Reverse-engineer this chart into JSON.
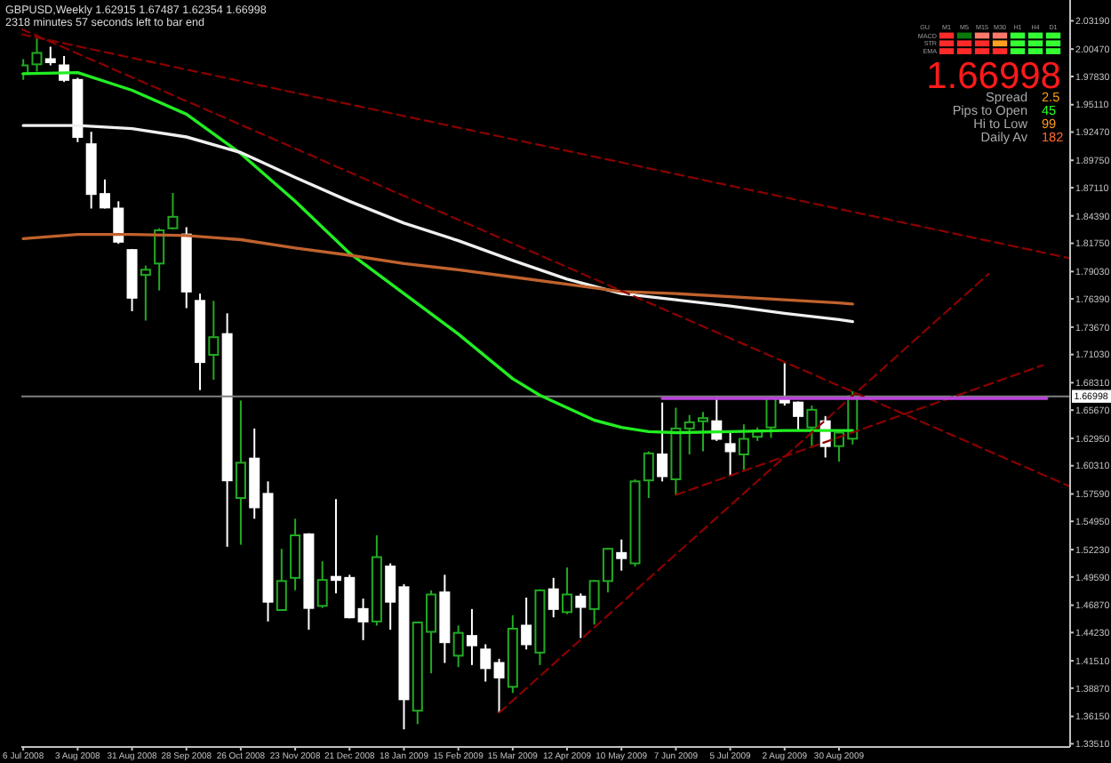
{
  "chart_data": {
    "type": "candlestick",
    "title": "GBPUSD,Weekly 1.62915 1.67487 1.62354 1.66998",
    "subtitle": "2318 minutes 57 seconds left to bar end",
    "x": [
      "2008-07-06",
      "2008-07-13",
      "2008-07-20",
      "2008-07-27",
      "2008-08-03",
      "2008-08-10",
      "2008-08-17",
      "2008-08-24",
      "2008-08-31",
      "2008-09-07",
      "2008-09-14",
      "2008-09-21",
      "2008-09-28",
      "2008-10-05",
      "2008-10-12",
      "2008-10-19",
      "2008-10-26",
      "2008-11-02",
      "2008-11-09",
      "2008-11-16",
      "2008-11-23",
      "2008-11-30",
      "2008-12-07",
      "2008-12-14",
      "2008-12-21",
      "2008-12-28",
      "2009-01-04",
      "2009-01-11",
      "2009-01-18",
      "2009-01-25",
      "2009-02-01",
      "2009-02-08",
      "2009-02-15",
      "2009-02-22",
      "2009-03-01",
      "2009-03-08",
      "2009-03-15",
      "2009-03-22",
      "2009-03-29",
      "2009-04-05",
      "2009-04-12",
      "2009-04-19",
      "2009-04-26",
      "2009-05-03",
      "2009-05-10",
      "2009-05-17",
      "2009-05-24",
      "2009-05-31",
      "2009-06-07",
      "2009-06-14",
      "2009-06-21",
      "2009-06-28",
      "2009-07-05",
      "2009-07-12",
      "2009-07-19",
      "2009-07-26",
      "2009-08-02",
      "2009-08-09",
      "2009-08-16",
      "2009-08-23",
      "2009-08-30",
      "2009-09-06"
    ],
    "ohlc": [
      [
        1.981,
        1.995,
        1.975,
        1.989
      ],
      [
        1.99,
        2.015,
        1.983,
        2.001
      ],
      [
        1.995,
        2.007,
        1.989,
        1.992
      ],
      [
        1.989,
        1.998,
        1.973,
        1.975
      ],
      [
        1.975,
        1.977,
        1.915,
        1.92
      ],
      [
        1.913,
        1.925,
        1.851,
        1.865
      ],
      [
        1.865,
        1.879,
        1.851,
        1.852
      ],
      [
        1.851,
        1.858,
        1.817,
        1.819
      ],
      [
        1.811,
        1.812,
        1.752,
        1.765
      ],
      [
        1.787,
        1.796,
        1.743,
        1.792
      ],
      [
        1.798,
        1.832,
        1.772,
        1.83
      ],
      [
        1.832,
        1.866,
        1.831,
        1.843
      ],
      [
        1.826,
        1.833,
        1.755,
        1.771
      ],
      [
        1.762,
        1.769,
        1.676,
        1.703
      ],
      [
        1.71,
        1.762,
        1.686,
        1.727
      ],
      [
        1.73,
        1.75,
        1.525,
        1.589
      ],
      [
        1.572,
        1.666,
        1.527,
        1.606
      ],
      [
        1.61,
        1.639,
        1.552,
        1.563
      ],
      [
        1.576,
        1.588,
        1.453,
        1.472
      ],
      [
        1.464,
        1.523,
        1.464,
        1.492
      ],
      [
        1.495,
        1.552,
        1.483,
        1.536
      ],
      [
        1.537,
        1.538,
        1.445,
        1.466
      ],
      [
        1.468,
        1.511,
        1.466,
        1.493
      ],
      [
        1.496,
        1.571,
        1.48,
        1.493
      ],
      [
        1.495,
        1.498,
        1.456,
        1.457
      ],
      [
        1.465,
        1.475,
        1.435,
        1.453
      ],
      [
        1.453,
        1.536,
        1.449,
        1.515
      ],
      [
        1.506,
        1.509,
        1.445,
        1.472
      ],
      [
        1.486,
        1.489,
        1.349,
        1.378
      ],
      [
        1.367,
        1.453,
        1.354,
        1.452
      ],
      [
        1.443,
        1.483,
        1.403,
        1.479
      ],
      [
        1.481,
        1.498,
        1.413,
        1.433
      ],
      [
        1.42,
        1.449,
        1.409,
        1.442
      ],
      [
        1.439,
        1.465,
        1.411,
        1.43
      ],
      [
        1.426,
        1.431,
        1.395,
        1.408
      ],
      [
        1.413,
        1.417,
        1.365,
        1.399
      ],
      [
        1.39,
        1.459,
        1.384,
        1.446
      ],
      [
        1.449,
        1.476,
        1.426,
        1.431
      ],
      [
        1.423,
        1.484,
        1.411,
        1.483
      ],
      [
        1.484,
        1.495,
        1.457,
        1.465
      ],
      [
        1.462,
        1.505,
        1.46,
        1.479
      ],
      [
        1.477,
        1.48,
        1.437,
        1.467
      ],
      [
        1.465,
        1.493,
        1.45,
        1.492
      ],
      [
        1.492,
        1.524,
        1.481,
        1.523
      ],
      [
        1.519,
        1.532,
        1.502,
        1.514
      ],
      [
        1.509,
        1.59,
        1.506,
        1.588
      ],
      [
        1.589,
        1.617,
        1.572,
        1.615
      ],
      [
        1.614,
        1.664,
        1.588,
        1.593
      ],
      [
        1.59,
        1.659,
        1.575,
        1.639
      ],
      [
        1.639,
        1.652,
        1.614,
        1.645
      ],
      [
        1.646,
        1.655,
        1.617,
        1.649
      ],
      [
        1.646,
        1.67,
        1.627,
        1.629
      ],
      [
        1.624,
        1.635,
        1.593,
        1.617
      ],
      [
        1.614,
        1.643,
        1.599,
        1.629
      ],
      [
        1.631,
        1.64,
        1.627,
        1.637
      ],
      [
        1.64,
        1.67,
        1.63,
        1.668
      ],
      [
        1.668,
        1.702,
        1.661,
        1.664
      ],
      [
        1.664,
        1.665,
        1.637,
        1.651
      ],
      [
        1.64,
        1.661,
        1.622,
        1.657
      ],
      [
        1.646,
        1.651,
        1.611,
        1.622
      ],
      [
        1.622,
        1.637,
        1.607,
        1.635
      ],
      [
        1.62915,
        1.67487,
        1.62354,
        1.66998
      ]
    ],
    "colors": [
      "#22aa22",
      "#22aa22",
      "#ffffff",
      "#ffffff",
      "#ffffff",
      "#ffffff",
      "#ffffff",
      "#ffffff",
      "#ffffff",
      "#22aa22",
      "#22aa22",
      "#22aa22",
      "#ffffff",
      "#ffffff",
      "#22aa22",
      "#ffffff",
      "#22aa22",
      "#ffffff",
      "#ffffff",
      "#22aa22",
      "#22aa22",
      "#ffffff",
      "#22aa22",
      "#ffffff",
      "#ffffff",
      "#ffffff",
      "#22aa22",
      "#ffffff",
      "#ffffff",
      "#22aa22",
      "#22aa22",
      "#ffffff",
      "#22aa22",
      "#ffffff",
      "#ffffff",
      "#ffffff",
      "#22aa22",
      "#ffffff",
      "#22aa22",
      "#ffffff",
      "#22aa22",
      "#ffffff",
      "#22aa22",
      "#22aa22",
      "#ffffff",
      "#22aa22",
      "#22aa22",
      "#ffffff",
      "#22aa22",
      "#22aa22",
      "#22aa22",
      "#ffffff",
      "#ffffff",
      "#22aa22",
      "#22aa22",
      "#22aa22",
      "#ffffff",
      "#ffffff",
      "#22aa22",
      "#ffffff",
      "#22aa22",
      "#22aa22"
    ],
    "series": [
      {
        "type": "line",
        "color": "#22ee22",
        "x": [
          "2008-07-06",
          "2008-08-03",
          "2008-08-31",
          "2008-09-28",
          "2008-10-26",
          "2008-11-23",
          "2008-12-21",
          "2009-01-18",
          "2009-02-15",
          "2009-03-15",
          "2009-03-29",
          "2009-04-12",
          "2009-04-26",
          "2009-05-10",
          "2009-05-24",
          "2009-06-07",
          "2009-07-05",
          "2009-08-02",
          "2009-08-30",
          "2009-09-06"
        ],
        "values": [
          1.981,
          1.982,
          1.965,
          1.942,
          1.904,
          1.858,
          1.808,
          1.769,
          1.73,
          1.687,
          1.671,
          1.659,
          1.647,
          1.64,
          1.636,
          1.635,
          1.636,
          1.637,
          1.637,
          1.637
        ]
      },
      {
        "type": "line",
        "color": "#f0f0f0",
        "x": [
          "2008-07-06",
          "2008-08-03",
          "2008-08-31",
          "2008-09-28",
          "2008-10-26",
          "2008-11-23",
          "2008-12-21",
          "2009-01-18",
          "2009-02-15",
          "2009-03-15",
          "2009-04-12",
          "2009-05-10",
          "2009-06-07",
          "2009-07-05",
          "2009-08-02",
          "2009-08-30",
          "2009-09-06"
        ],
        "values": [
          1.931,
          1.931,
          1.928,
          1.92,
          1.905,
          1.881,
          1.858,
          1.837,
          1.82,
          1.801,
          1.783,
          1.769,
          1.763,
          1.757,
          1.75,
          1.744,
          1.742
        ]
      },
      {
        "type": "line",
        "color": "#c0622d",
        "x": [
          "2008-07-06",
          "2008-08-03",
          "2008-08-31",
          "2008-09-28",
          "2008-10-26",
          "2008-11-23",
          "2008-12-21",
          "2009-01-18",
          "2009-02-15",
          "2009-03-15",
          "2009-04-12",
          "2009-05-10",
          "2009-06-07",
          "2009-07-05",
          "2009-08-02",
          "2009-08-30",
          "2009-09-06"
        ],
        "values": [
          1.822,
          1.826,
          1.826,
          1.825,
          1.821,
          1.813,
          1.806,
          1.798,
          1.792,
          1.785,
          1.778,
          1.771,
          1.769,
          1.766,
          1.763,
          1.76,
          1.759
        ]
      },
      {
        "type": "line",
        "color": "#8b0000",
        "line_style": "dashed",
        "x": [
          "2008-07-05",
          "2009-12-27"
        ],
        "values": [
          2.019,
          1.803
        ]
      },
      {
        "type": "line",
        "color": "#8b0000",
        "line_style": "dashed",
        "x": [
          "2008-07-05",
          "2009-12-27"
        ],
        "values": [
          2.024,
          1.583
        ]
      },
      {
        "type": "line",
        "color": "#8b0000",
        "line_style": "dashed",
        "x": [
          "2009-03-08",
          "2009-11-15"
        ],
        "values": [
          1.365,
          1.788
        ]
      },
      {
        "type": "line",
        "color": "#8b0000",
        "line_style": "dashed",
        "x": [
          "2009-06-07",
          "2009-12-13"
        ],
        "values": [
          1.575,
          1.7
        ]
      },
      {
        "type": "line",
        "color": "#bb44dd",
        "x": [
          "2009-05-31",
          "2009-12-15"
        ],
        "values": [
          1.668,
          1.668
        ]
      }
    ],
    "xlim": [
      "2008-07-05",
      "2009-12-27"
    ],
    "xticks": [
      {
        "value": "2008-07-06",
        "label": "6 Jul 2008"
      },
      {
        "value": "2008-08-03",
        "label": "3 Aug 2008"
      },
      {
        "value": "2008-08-31",
        "label": "31 Aug 2008"
      },
      {
        "value": "2008-09-28",
        "label": "28 Sep 2008"
      },
      {
        "value": "2008-10-26",
        "label": "26 Oct 2008"
      },
      {
        "value": "2008-11-23",
        "label": "23 Nov 2008"
      },
      {
        "value": "2008-12-21",
        "label": "21 Dec 2008"
      },
      {
        "value": "2009-01-18",
        "label": "18 Jan 2009"
      },
      {
        "value": "2009-02-15",
        "label": "15 Feb 2009"
      },
      {
        "value": "2009-03-15",
        "label": "15 Mar 2009"
      },
      {
        "value": "2009-04-12",
        "label": "12 Apr 2009"
      },
      {
        "value": "2009-05-10",
        "label": "10 May 2009"
      },
      {
        "value": "2009-06-07",
        "label": "7 Jun 2009"
      },
      {
        "value": "2009-07-05",
        "label": "5 Jul 2009"
      },
      {
        "value": "2009-08-02",
        "label": "2 Aug 2009"
      },
      {
        "value": "2009-08-30",
        "label": "30 Aug 2009"
      }
    ],
    "ylim": [
      1.332,
      2.052
    ],
    "yticks": [
      {
        "value": 2.0319,
        "label": "2.03190"
      },
      {
        "value": 2.0047,
        "label": "2.00470"
      },
      {
        "value": 1.9783,
        "label": "1.97830"
      },
      {
        "value": 1.9511,
        "label": "1.95110"
      },
      {
        "value": 1.9247,
        "label": "1.92470"
      },
      {
        "value": 1.8975,
        "label": "1.89750"
      },
      {
        "value": 1.8711,
        "label": "1.87110"
      },
      {
        "value": 1.8439,
        "label": "1.84390"
      },
      {
        "value": 1.8175,
        "label": "1.81750"
      },
      {
        "value": 1.7903,
        "label": "1.79030"
      },
      {
        "value": 1.7639,
        "label": "1.76390"
      },
      {
        "value": 1.7367,
        "label": "1.73670"
      },
      {
        "value": 1.7103,
        "label": "1.71030"
      },
      {
        "value": 1.6831,
        "label": "1.68310"
      },
      {
        "value": 1.6567,
        "label": "1.65670"
      },
      {
        "value": 1.6295,
        "label": "1.62950"
      },
      {
        "value": 1.6031,
        "label": "1.60310"
      },
      {
        "value": 1.5759,
        "label": "1.57590"
      },
      {
        "value": 1.5495,
        "label": "1.54950"
      },
      {
        "value": 1.5223,
        "label": "1.52230"
      },
      {
        "value": 1.4959,
        "label": "1.49590"
      },
      {
        "value": 1.4687,
        "label": "1.46870"
      },
      {
        "value": 1.4423,
        "label": "1.44230"
      },
      {
        "value": 1.4151,
        "label": "1.41510"
      },
      {
        "value": 1.3887,
        "label": "1.38870"
      },
      {
        "value": 1.3615,
        "label": "1.36150"
      },
      {
        "value": 1.3351,
        "label": "1.33510"
      }
    ],
    "ref_lines": [
      {
        "axis": "y",
        "value": 1.66998,
        "label": "1.66998",
        "color": "#808080"
      }
    ],
    "annotations": [
      "1.66998",
      "Spread",
      "2.5",
      "Pips to Open",
      "45",
      "Hi to Low",
      "99",
      "Daily Av",
      "182",
      "GU",
      "M1",
      "M5",
      "M15",
      "M30",
      "H1",
      "H4",
      "D1",
      "MACD",
      "STR",
      "EMA"
    ]
  }
}
